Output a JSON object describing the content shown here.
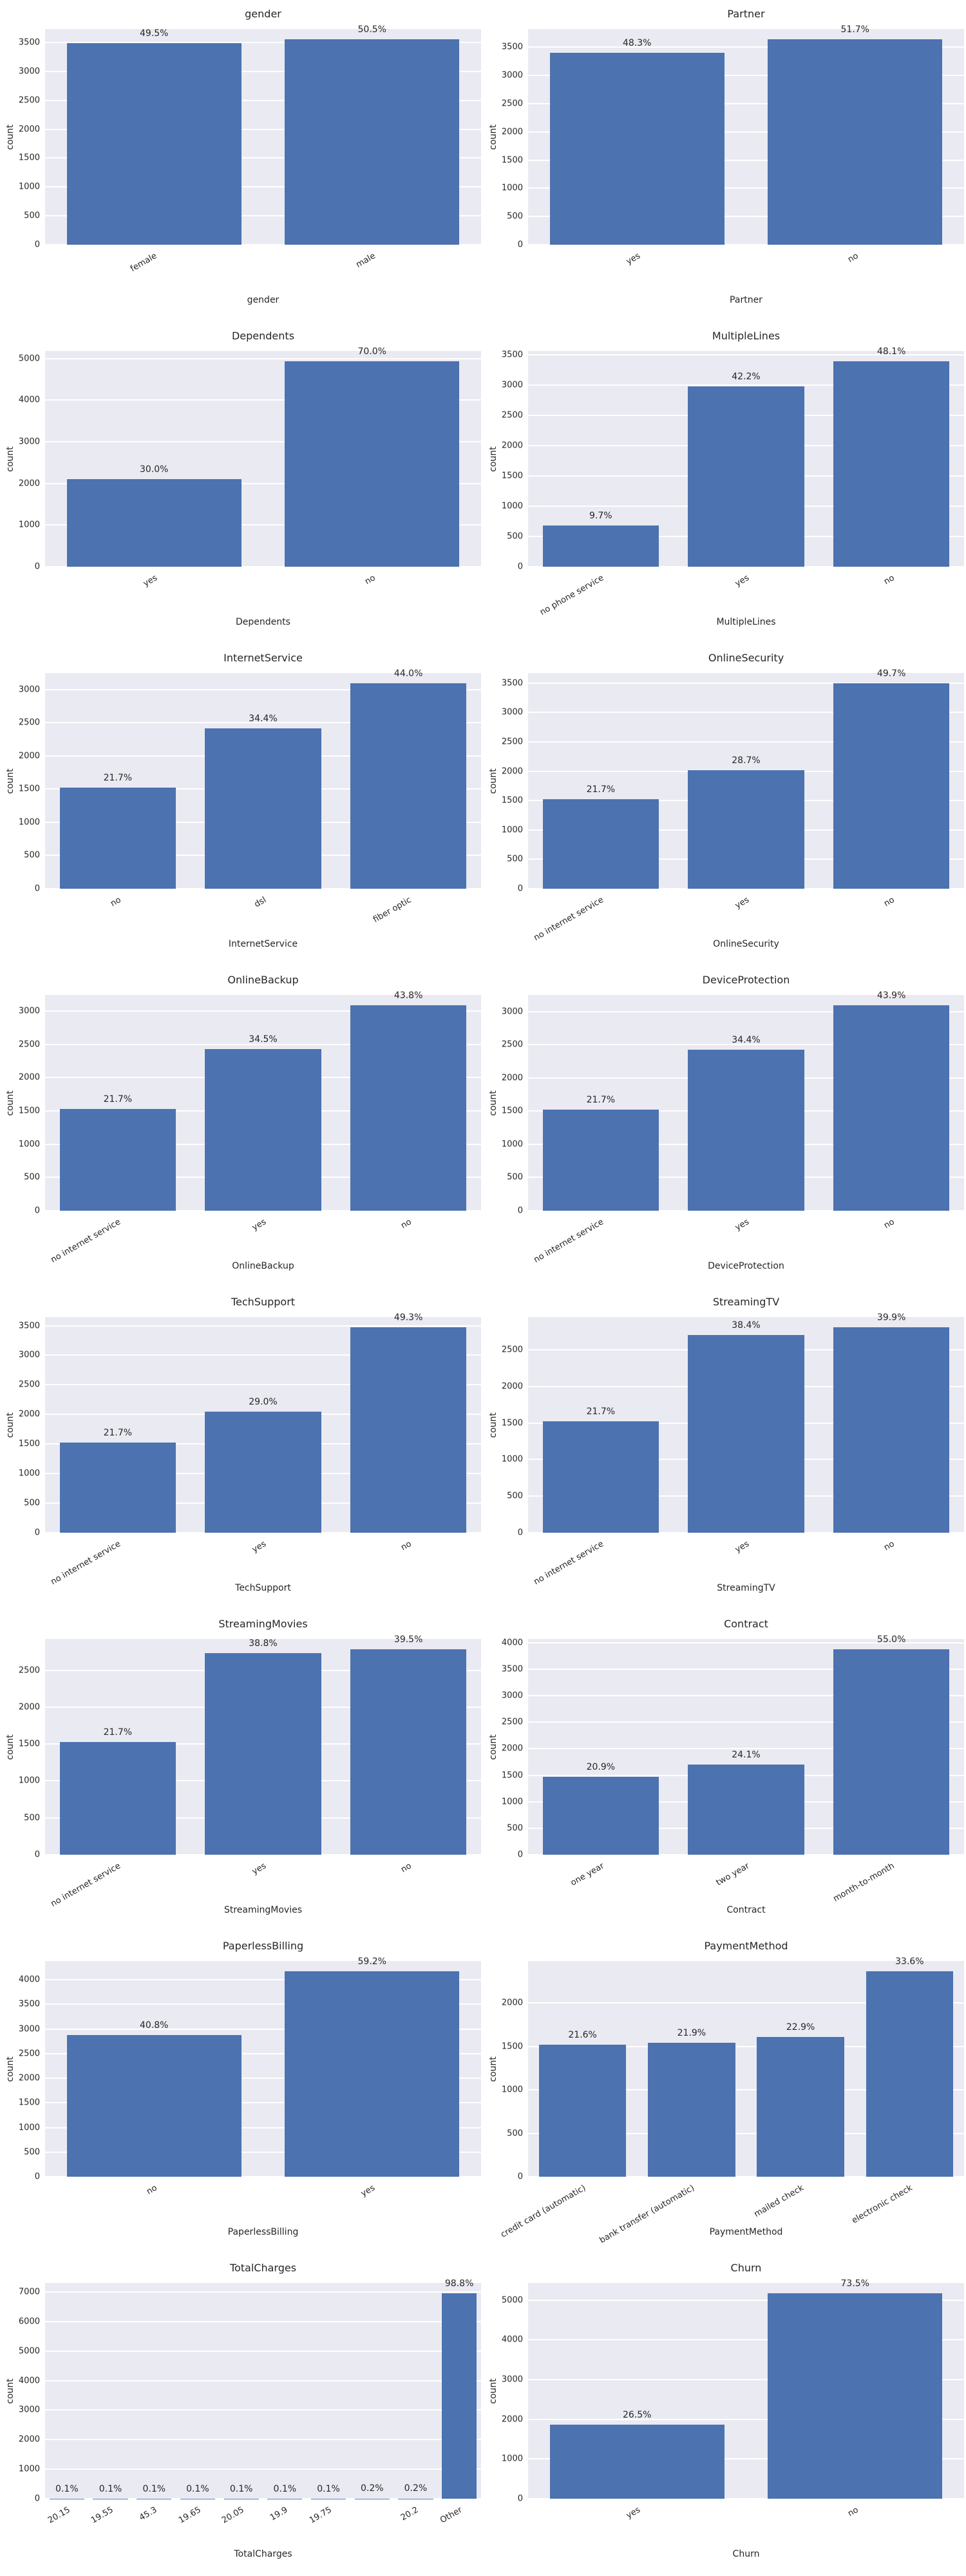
{
  "figure": {
    "background": "#ffffff",
    "axes_background": "#eaeaf2",
    "grid_color": "#ffffff",
    "bar_color": "#4c72b0",
    "text_color": "#262626"
  },
  "chart_data": [
    {
      "type": "bar",
      "title": "gender",
      "xlabel": "gender",
      "ylabel": "count",
      "categories": [
        "female",
        "male"
      ],
      "values": [
        3488,
        3555
      ],
      "bar_labels": [
        "49.5%",
        "50.5%"
      ],
      "yticks": [
        0,
        500,
        1000,
        1500,
        2000,
        2500,
        3000,
        3500
      ],
      "ylim": [
        0,
        3733
      ],
      "grid": "on",
      "legend": "none"
    },
    {
      "type": "bar",
      "title": "Partner",
      "xlabel": "Partner",
      "ylabel": "count",
      "categories": [
        "yes",
        "no"
      ],
      "values": [
        3402,
        3641
      ],
      "bar_labels": [
        "48.3%",
        "51.7%"
      ],
      "yticks": [
        0,
        500,
        1000,
        1500,
        2000,
        2500,
        3000,
        3500
      ],
      "ylim": [
        0,
        3823
      ],
      "grid": "on",
      "legend": "none"
    },
    {
      "type": "bar",
      "title": "Dependents",
      "xlabel": "Dependents",
      "ylabel": "count",
      "categories": [
        "yes",
        "no"
      ],
      "values": [
        2110,
        4933
      ],
      "bar_labels": [
        "30.0%",
        "70.0%"
      ],
      "yticks": [
        0,
        1000,
        2000,
        3000,
        4000,
        5000
      ],
      "ylim": [
        0,
        5180
      ],
      "grid": "on",
      "legend": "none"
    },
    {
      "type": "bar",
      "title": "MultipleLines",
      "xlabel": "MultipleLines",
      "ylabel": "count",
      "categories": [
        "no phone service",
        "yes",
        "no"
      ],
      "values": [
        682,
        2971,
        3390
      ],
      "bar_labels": [
        "9.7%",
        "42.2%",
        "48.1%"
      ],
      "yticks": [
        0,
        500,
        1000,
        1500,
        2000,
        2500,
        3000,
        3500
      ],
      "ylim": [
        0,
        3560
      ],
      "grid": "on",
      "legend": "none"
    },
    {
      "type": "bar",
      "title": "InternetService",
      "xlabel": "InternetService",
      "ylabel": "count",
      "categories": [
        "no",
        "dsl",
        "fiber optic"
      ],
      "values": [
        1526,
        2421,
        3096
      ],
      "bar_labels": [
        "21.7%",
        "34.4%",
        "44.0%"
      ],
      "yticks": [
        0,
        500,
        1000,
        1500,
        2000,
        2500,
        3000
      ],
      "ylim": [
        0,
        3251
      ],
      "grid": "on",
      "legend": "none"
    },
    {
      "type": "bar",
      "title": "OnlineSecurity",
      "xlabel": "OnlineSecurity",
      "ylabel": "count",
      "categories": [
        "no internet service",
        "yes",
        "no"
      ],
      "values": [
        1526,
        2019,
        3498
      ],
      "bar_labels": [
        "21.7%",
        "28.7%",
        "49.7%"
      ],
      "yticks": [
        0,
        500,
        1000,
        1500,
        2000,
        2500,
        3000,
        3500
      ],
      "ylim": [
        0,
        3673
      ],
      "grid": "on",
      "legend": "none"
    },
    {
      "type": "bar",
      "title": "OnlineBackup",
      "xlabel": "OnlineBackup",
      "ylabel": "count",
      "categories": [
        "no internet service",
        "yes",
        "no"
      ],
      "values": [
        1526,
        2429,
        3088
      ],
      "bar_labels": [
        "21.7%",
        "34.5%",
        "43.8%"
      ],
      "yticks": [
        0,
        500,
        1000,
        1500,
        2000,
        2500,
        3000
      ],
      "ylim": [
        0,
        3242
      ],
      "grid": "on",
      "legend": "none"
    },
    {
      "type": "bar",
      "title": "DeviceProtection",
      "xlabel": "DeviceProtection",
      "ylabel": "count",
      "categories": [
        "no internet service",
        "yes",
        "no"
      ],
      "values": [
        1526,
        2422,
        3095
      ],
      "bar_labels": [
        "21.7%",
        "34.4%",
        "43.9%"
      ],
      "yticks": [
        0,
        500,
        1000,
        1500,
        2000,
        2500,
        3000
      ],
      "ylim": [
        0,
        3250
      ],
      "grid": "on",
      "legend": "none"
    },
    {
      "type": "bar",
      "title": "TechSupport",
      "xlabel": "TechSupport",
      "ylabel": "count",
      "categories": [
        "no internet service",
        "yes",
        "no"
      ],
      "values": [
        1526,
        2044,
        3473
      ],
      "bar_labels": [
        "21.7%",
        "29.0%",
        "49.3%"
      ],
      "yticks": [
        0,
        500,
        1000,
        1500,
        2000,
        2500,
        3000,
        3500
      ],
      "ylim": [
        0,
        3647
      ],
      "grid": "on",
      "legend": "none"
    },
    {
      "type": "bar",
      "title": "StreamingTV",
      "xlabel": "StreamingTV",
      "ylabel": "count",
      "categories": [
        "no internet service",
        "yes",
        "no"
      ],
      "values": [
        1526,
        2707,
        2810
      ],
      "bar_labels": [
        "21.7%",
        "38.4%",
        "39.9%"
      ],
      "yticks": [
        0,
        500,
        1000,
        1500,
        2000,
        2500
      ],
      "ylim": [
        0,
        2951
      ],
      "grid": "on",
      "legend": "none"
    },
    {
      "type": "bar",
      "title": "StreamingMovies",
      "xlabel": "StreamingMovies",
      "ylabel": "count",
      "categories": [
        "no internet service",
        "yes",
        "no"
      ],
      "values": [
        1526,
        2732,
        2785
      ],
      "bar_labels": [
        "21.7%",
        "38.8%",
        "39.5%"
      ],
      "yticks": [
        0,
        500,
        1000,
        1500,
        2000,
        2500
      ],
      "ylim": [
        0,
        2924
      ],
      "grid": "on",
      "legend": "none"
    },
    {
      "type": "bar",
      "title": "Contract",
      "xlabel": "Contract",
      "ylabel": "count",
      "categories": [
        "one year",
        "two year",
        "month-to-month"
      ],
      "values": [
        1473,
        1695,
        3875
      ],
      "bar_labels": [
        "20.9%",
        "24.1%",
        "55.0%"
      ],
      "yticks": [
        0,
        500,
        1000,
        1500,
        2000,
        2500,
        3000,
        3500,
        4000
      ],
      "ylim": [
        0,
        4069
      ],
      "grid": "on",
      "legend": "none"
    },
    {
      "type": "bar",
      "title": "PaperlessBilling",
      "xlabel": "PaperlessBilling",
      "ylabel": "count",
      "categories": [
        "no",
        "yes"
      ],
      "values": [
        2872,
        4171
      ],
      "bar_labels": [
        "40.8%",
        "59.2%"
      ],
      "yticks": [
        0,
        500,
        1000,
        1500,
        2000,
        2500,
        3000,
        3500,
        4000
      ],
      "ylim": [
        0,
        4380
      ],
      "grid": "on",
      "legend": "none"
    },
    {
      "type": "bar",
      "title": "PaymentMethod",
      "xlabel": "PaymentMethod",
      "ylabel": "count",
      "categories": [
        "credit card (automatic)",
        "bank transfer (automatic)",
        "mailed check",
        "electronic check"
      ],
      "values": [
        1522,
        1544,
        1612,
        2365
      ],
      "bar_labels": [
        "21.6%",
        "21.9%",
        "22.9%",
        "33.6%"
      ],
      "yticks": [
        0,
        500,
        1000,
        1500,
        2000
      ],
      "ylim": [
        0,
        2483
      ],
      "grid": "on",
      "legend": "none"
    },
    {
      "type": "bar",
      "title": "TotalCharges",
      "xlabel": "TotalCharges",
      "ylabel": "count",
      "categories": [
        "20.15",
        "19.55",
        "45.3",
        "19.65",
        "20.05",
        "19.9",
        "19.75",
        "",
        "20.2",
        "Other"
      ],
      "values": [
        8,
        8,
        8,
        8,
        8,
        8,
        8,
        11,
        11,
        6958
      ],
      "bar_labels": [
        "0.1%",
        "0.1%",
        "0.1%",
        "0.1%",
        "0.1%",
        "0.1%",
        "0.1%",
        "0.2%",
        "0.2%",
        "98.8%"
      ],
      "yticks": [
        0,
        1000,
        2000,
        3000,
        4000,
        5000,
        6000,
        7000
      ],
      "ylim": [
        0,
        7306
      ],
      "grid": "on",
      "legend": "none"
    },
    {
      "type": "bar",
      "title": "Churn",
      "xlabel": "Churn",
      "ylabel": "count",
      "categories": [
        "yes",
        "no"
      ],
      "values": [
        1869,
        5174
      ],
      "bar_labels": [
        "26.5%",
        "73.5%"
      ],
      "yticks": [
        0,
        1000,
        2000,
        3000,
        4000,
        5000
      ],
      "ylim": [
        0,
        5433
      ],
      "grid": "on",
      "legend": "none"
    }
  ]
}
